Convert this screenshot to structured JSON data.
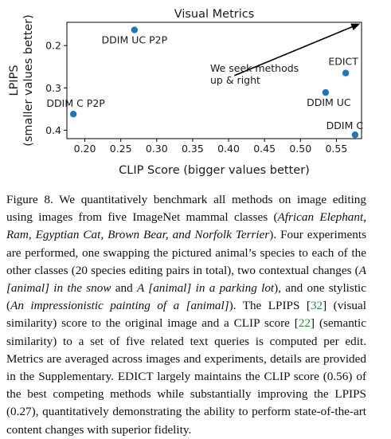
{
  "chart_data": {
    "type": "scatter",
    "title": "Visual Metrics",
    "xlabel": "CLIP Score (bigger values better)",
    "ylabel_lines": [
      "LPIPS",
      "(smaller values better)"
    ],
    "xlim": [
      0.175,
      0.585
    ],
    "ylim": [
      0.42,
      0.145
    ],
    "y_inverted": true,
    "xticks": [
      0.2,
      0.25,
      0.3,
      0.35,
      0.4,
      0.45,
      0.5,
      0.55
    ],
    "xtick_labels": [
      "0.20",
      "0.25",
      "0.30",
      "0.35",
      "0.40",
      "0.45",
      "0.50",
      "0.55"
    ],
    "yticks": [
      0.2,
      0.3,
      0.4
    ],
    "ytick_labels": [
      "0.2",
      "0.3",
      "0.4"
    ],
    "grid": false,
    "marker_color": "#1f77b4",
    "points": [
      {
        "label": "DDIM UC P2P",
        "x": 0.269,
        "y": 0.163
      },
      {
        "label": "EDICT",
        "x": 0.563,
        "y": 0.265
      },
      {
        "label": "DDIM UC",
        "x": 0.535,
        "y": 0.311
      },
      {
        "label": "DDIM C P2P",
        "x": 0.184,
        "y": 0.362
      },
      {
        "label": "DDIM C",
        "x": 0.576,
        "y": 0.411
      }
    ],
    "annotation": {
      "lines": [
        "We seek methods",
        "up & right"
      ],
      "arrow_from": [
        0.408,
        0.271
      ],
      "arrow_to": [
        0.583,
        0.148
      ]
    }
  },
  "caption": {
    "parts": [
      {
        "t": "Figure 8. We quantitatively benchmark all methods on image editing using images from five ImageNet mammal classes (",
        "s": "n"
      },
      {
        "t": "African Elephant, Ram, Egyptian Cat, Brown Bear, and Norfolk Terrier",
        "s": "i"
      },
      {
        "t": "). Four experiments are performed, one swapping the pictured animal’s species to each of the other classes (20 species editing pairs in total), two contextual changes (",
        "s": "n"
      },
      {
        "t": "A [animal] in the snow",
        "s": "i"
      },
      {
        "t": " and ",
        "s": "n"
      },
      {
        "t": "A [animal] in a parking lot",
        "s": "i"
      },
      {
        "t": "), and one stylistic (",
        "s": "n"
      },
      {
        "t": "An impressionistic painting of a [animal]",
        "s": "i"
      },
      {
        "t": "). The LPIPS [",
        "s": "n"
      },
      {
        "t": "32",
        "s": "c"
      },
      {
        "t": "] (visual similarity) score to the original image and a CLIP score [",
        "s": "n"
      },
      {
        "t": "22",
        "s": "c"
      },
      {
        "t": "] (semantic similarity) to a set of five related text queries is computed per edit. Metrics are averaged across images and experiments, details are provided in the Supplementary. EDICT largely maintains the CLIP score (0.56) of the best competing methods while substantially improving the LPIPS (0.27), quantitatively demonstrating the ability to perform state-of-the-art content changes with superior fidelity.",
        "s": "n"
      }
    ]
  }
}
